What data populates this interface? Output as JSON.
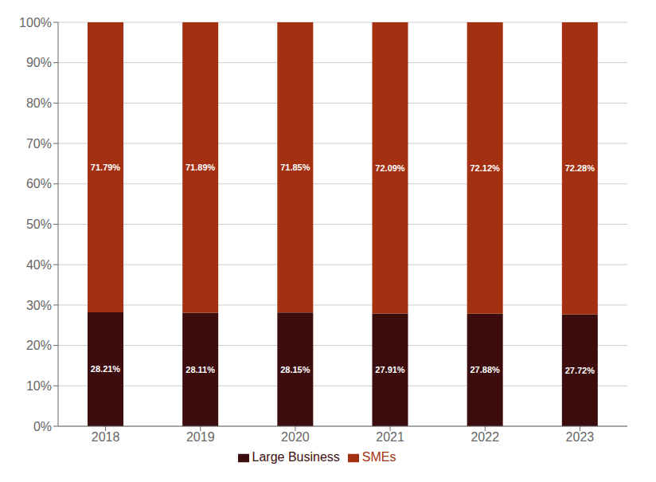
{
  "chart_data": {
    "type": "bar",
    "stacked": true,
    "categories": [
      "2018",
      "2019",
      "2020",
      "2021",
      "2022",
      "2023"
    ],
    "series": [
      {
        "name": "Large Business",
        "color": "#3d0d0d",
        "values": [
          28.21,
          28.11,
          28.15,
          27.91,
          27.88,
          27.72
        ],
        "value_labels": [
          "28.21%",
          "28.11%",
          "28.15%",
          "27.91%",
          "27.88%",
          "27.72%"
        ]
      },
      {
        "name": "SMEs",
        "color": "#a33010",
        "values": [
          71.79,
          71.89,
          71.85,
          72.09,
          72.12,
          72.28
        ],
        "value_labels": [
          "71.79%",
          "71.89%",
          "71.85%",
          "72.09%",
          "72.12%",
          "72.28%"
        ]
      }
    ],
    "ylim": [
      0,
      100
    ],
    "yticks": [
      {
        "value": 0,
        "label": "0%"
      },
      {
        "value": 10,
        "label": "10%"
      },
      {
        "value": 20,
        "label": "20%"
      },
      {
        "value": 30,
        "label": "30%"
      },
      {
        "value": 40,
        "label": "40%"
      },
      {
        "value": 50,
        "label": "50%"
      },
      {
        "value": 60,
        "label": "60%"
      },
      {
        "value": 70,
        "label": "70%"
      },
      {
        "value": 80,
        "label": "80%"
      },
      {
        "value": 90,
        "label": "90%"
      },
      {
        "value": 100,
        "label": "100%"
      }
    ],
    "grid": true,
    "legend": "bottom",
    "data_labels": true
  }
}
